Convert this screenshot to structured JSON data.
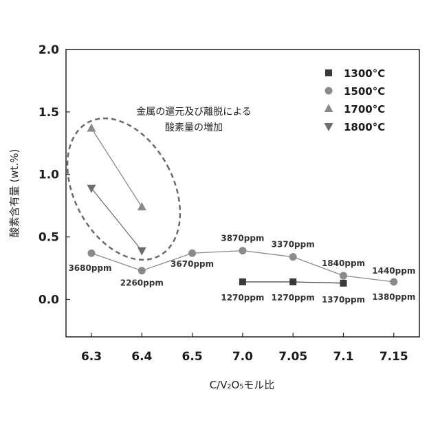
{
  "chart_data": {
    "type": "line",
    "categories": [
      "6.3",
      "6.4",
      "6.5",
      "7.0",
      "7.05",
      "7.1",
      "7.15"
    ],
    "ylabel": "酸素含有量 (wt.%)",
    "xlabel": "C/V₂O₅モル比",
    "ylim": [
      -0.3,
      2.0
    ],
    "yticks": [
      "2.0",
      "1.5",
      "1.0",
      "0.5",
      "0.0"
    ],
    "ytick_values": [
      2.0,
      1.5,
      1.0,
      0.5,
      0.0
    ],
    "legend_position": "top-right",
    "series": [
      {
        "name": "1300°C",
        "marker": "square",
        "color": "#3a3a3a",
        "points": [
          {
            "i": 3,
            "y": 0.14
          },
          {
            "i": 4,
            "y": 0.14
          },
          {
            "i": 5,
            "y": 0.13
          }
        ]
      },
      {
        "name": "1500°C",
        "marker": "circle",
        "color": "#8a8a8a",
        "points": [
          {
            "i": 0,
            "y": 0.37
          },
          {
            "i": 1,
            "y": 0.23
          },
          {
            "i": 2,
            "y": 0.37
          },
          {
            "i": 3,
            "y": 0.39
          },
          {
            "i": 4,
            "y": 0.34
          },
          {
            "i": 5,
            "y": 0.19
          },
          {
            "i": 6,
            "y": 0.14
          }
        ]
      },
      {
        "name": "1700°C",
        "marker": "triangle-up",
        "color": "#8a8a8a",
        "points": [
          {
            "i": 0,
            "y": 1.37
          },
          {
            "i": 1,
            "y": 0.74
          }
        ]
      },
      {
        "name": "1800°C",
        "marker": "triangle-down",
        "color": "#6e6e6e",
        "points": [
          {
            "i": 0,
            "y": 0.89
          },
          {
            "i": 1,
            "y": 0.39
          }
        ]
      }
    ],
    "data_labels": [
      {
        "text": "3680ppm",
        "i": 0,
        "y": 0.37
      },
      {
        "text": "2260ppm",
        "i": 1,
        "y": 0.23
      },
      {
        "text": "3670ppm",
        "i": 2,
        "y": 0.37
      },
      {
        "text": "3870ppm",
        "i": 3,
        "y": 0.39
      },
      {
        "text": "3370ppm",
        "i": 4,
        "y": 0.34
      },
      {
        "text": "1840ppm",
        "i": 5,
        "y": 0.19
      },
      {
        "text": "1440ppm",
        "i": 6,
        "y": 0.14
      },
      {
        "text": "1270ppm",
        "i": 3,
        "y": 0.14
      },
      {
        "text": "1270ppm",
        "i": 4,
        "y": 0.14
      },
      {
        "text": "1370ppm",
        "i": 5,
        "y": 0.13
      },
      {
        "text": "1380ppm",
        "i": 6,
        "y": 0.14
      }
    ],
    "annotation": {
      "line1": "金属の還元及び離脱による",
      "line2": "酸素量の増加"
    }
  }
}
